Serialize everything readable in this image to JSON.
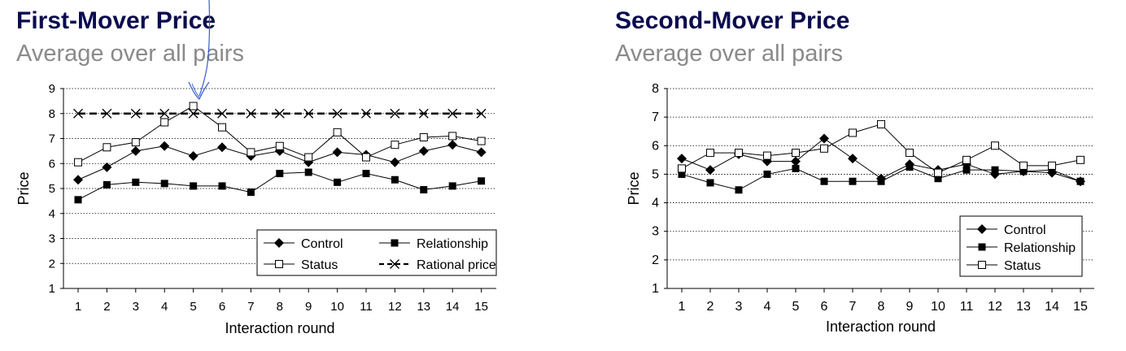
{
  "charts": [
    {
      "title": "First-Mover Price",
      "subtitle": "Average over all pairs"
    },
    {
      "title": "Second-Mover Price",
      "subtitle": "Average over all pairs"
    }
  ],
  "chart_data": [
    {
      "type": "line",
      "xlabel": "Interaction round",
      "ylabel": "Price",
      "x": [
        1,
        2,
        3,
        4,
        5,
        6,
        7,
        8,
        9,
        10,
        11,
        12,
        13,
        14,
        15
      ],
      "ylim": [
        1,
        9
      ],
      "yticks": [
        1,
        2,
        3,
        4,
        5,
        6,
        7,
        8,
        9
      ],
      "grid": "horizontal dotted",
      "legend_position": "bottom-right",
      "series": [
        {
          "name": "Control",
          "marker": "diamond-filled",
          "values": [
            5.35,
            5.85,
            6.5,
            6.7,
            6.3,
            6.65,
            6.3,
            6.5,
            6.05,
            6.45,
            6.35,
            6.05,
            6.5,
            6.75,
            6.45
          ]
        },
        {
          "name": "Relationship",
          "marker": "square-filled",
          "values": [
            4.55,
            5.15,
            5.25,
            5.2,
            5.1,
            5.1,
            4.85,
            5.6,
            5.65,
            5.25,
            5.6,
            5.35,
            4.95,
            5.1,
            5.3
          ]
        },
        {
          "name": "Status",
          "marker": "square-open",
          "values": [
            6.05,
            6.65,
            6.85,
            7.65,
            8.3,
            7.45,
            6.45,
            6.7,
            6.25,
            7.25,
            6.25,
            6.75,
            7.05,
            7.1,
            6.9
          ]
        },
        {
          "name": "Rational price",
          "marker": "x",
          "line": "dashed",
          "values": [
            8,
            8,
            8,
            8,
            8,
            8,
            8,
            8,
            8,
            8,
            8,
            8,
            8,
            8,
            8
          ]
        }
      ]
    },
    {
      "type": "line",
      "xlabel": "Interaction round",
      "ylabel": "Price",
      "x": [
        1,
        2,
        3,
        4,
        5,
        6,
        7,
        8,
        9,
        10,
        11,
        12,
        13,
        14,
        15
      ],
      "ylim": [
        1,
        8
      ],
      "yticks": [
        1,
        2,
        3,
        4,
        5,
        6,
        7,
        8
      ],
      "grid": "horizontal dotted",
      "legend_position": "bottom-right",
      "series": [
        {
          "name": "Control",
          "marker": "diamond-filled",
          "values": [
            5.55,
            5.15,
            5.7,
            5.45,
            5.45,
            6.25,
            5.55,
            4.85,
            5.35,
            5.15,
            5.35,
            5.0,
            5.1,
            5.05,
            4.75
          ]
        },
        {
          "name": "Relationship",
          "marker": "square-filled",
          "values": [
            5.0,
            4.7,
            4.45,
            5.0,
            5.2,
            4.75,
            4.75,
            4.75,
            5.25,
            4.85,
            5.15,
            5.15,
            5.1,
            5.15,
            4.75
          ]
        },
        {
          "name": "Status",
          "marker": "square-open",
          "values": [
            5.2,
            5.75,
            5.75,
            5.65,
            5.75,
            5.9,
            6.45,
            6.75,
            5.75,
            5.05,
            5.5,
            6.0,
            5.3,
            5.3,
            5.5
          ]
        }
      ]
    }
  ]
}
